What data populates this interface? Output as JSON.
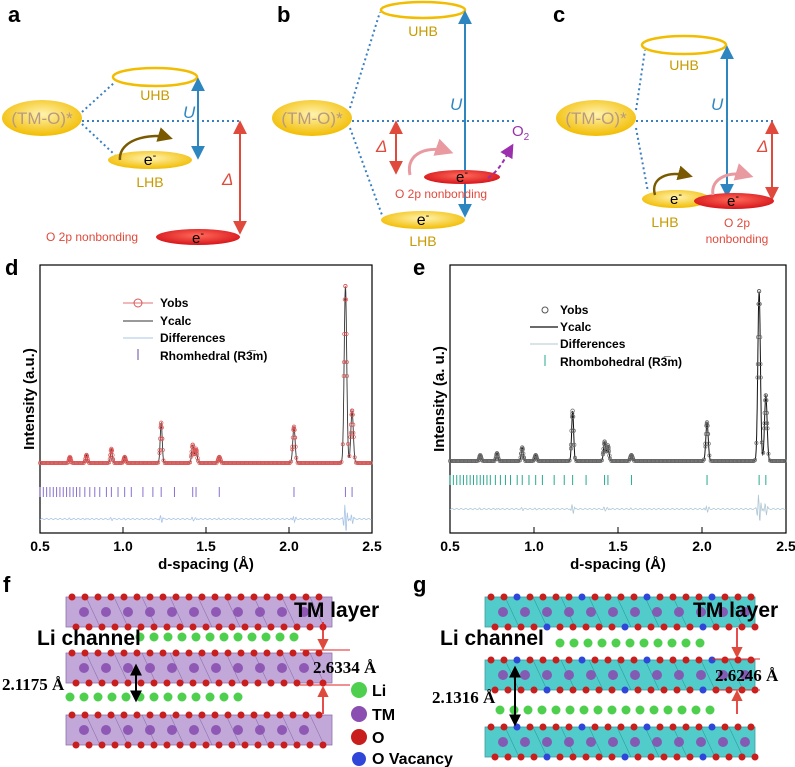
{
  "panels": {
    "a": {
      "letter": "a",
      "tm_o": "(TM-O)*",
      "uhb": "UHB",
      "lhb": "LHB",
      "electron": "e",
      "electron_sup": "-",
      "u": "U",
      "delta": "Δ",
      "nonbonding": "O 2p nonbonding",
      "nonbonding_e": "e",
      "nonbonding_e_sup": "-"
    },
    "b": {
      "letter": "b",
      "tm_o": "(TM-O)*",
      "uhb": "UHB",
      "lhb": "LHB",
      "u": "U",
      "delta": "Δ",
      "lhb_e": "e",
      "lhb_e_sup": "-",
      "nb_e": "e",
      "nb_e_sup": "-",
      "nonbonding": "O 2p nonbonding",
      "o2": "O",
      "o2_sub": "2"
    },
    "c": {
      "letter": "c",
      "tm_o": "(TM-O)*",
      "uhb": "UHB",
      "lhb": "LHB",
      "u": "U",
      "delta": "Δ",
      "e1": "e",
      "e1_sup": "-",
      "e2": "e",
      "e2_sup": "-",
      "nb_line1": "O 2p",
      "nb_line2": "nonbonding"
    },
    "f": {
      "letter": "f",
      "tm_layer": "TM layer",
      "li_channel": "Li channel",
      "d1": "2.6334 Å",
      "d2": "2.1175 Å"
    },
    "g": {
      "letter": "g",
      "tm_layer": "TM layer",
      "li_channel": "Li channel",
      "d1": "2.6246 Å",
      "d2": "2.1316 Å"
    },
    "legend": {
      "li": "Li",
      "tm": "TM",
      "o": "O",
      "vac": "O Vacancy"
    }
  },
  "colors": {
    "yellow": "#f5c400",
    "red_band": "#e0201c",
    "blue_arrow": "#2e86c1",
    "red_arrow": "#e04a3c",
    "dotted_line": "#3a7fc1",
    "li": "#4ed04e",
    "tm": "#8a4fb0",
    "o": "#c81e1e",
    "vac": "#3046d8",
    "layer_purple": "#b79ad3",
    "layer_teal": "#34c3c3"
  },
  "chart_data": [
    {
      "panel": "d",
      "type": "line",
      "xlabel": "d-spacing (Å)",
      "ylabel": "Intensity (a.u.)",
      "xlim": [
        0.5,
        2.5
      ],
      "xticks": [
        "0.5",
        "1.0",
        "1.5",
        "2.0",
        "2.5"
      ],
      "legend_position": "top-center",
      "legend": [
        "Yobs",
        "Ycalc",
        "Differences",
        "Rhomhedral (R3̅m)"
      ],
      "background": 0.08,
      "peaks": [
        {
          "x": 0.68,
          "y": 0.03
        },
        {
          "x": 0.78,
          "y": 0.04
        },
        {
          "x": 0.93,
          "y": 0.07
        },
        {
          "x": 1.01,
          "y": 0.03
        },
        {
          "x": 1.23,
          "y": 0.2
        },
        {
          "x": 1.42,
          "y": 0.09
        },
        {
          "x": 1.44,
          "y": 0.07
        },
        {
          "x": 1.58,
          "y": 0.03
        },
        {
          "x": 2.03,
          "y": 0.18
        },
        {
          "x": 2.34,
          "y": 0.88
        },
        {
          "x": 2.38,
          "y": 0.26
        }
      ],
      "reflection_ticks": [
        0.5,
        0.52,
        0.54,
        0.56,
        0.58,
        0.6,
        0.62,
        0.64,
        0.66,
        0.68,
        0.7,
        0.72,
        0.74,
        0.77,
        0.8,
        0.83,
        0.86,
        0.9,
        0.93,
        0.97,
        1.01,
        1.05,
        1.12,
        1.18,
        1.23,
        1.31,
        1.42,
        1.44,
        1.58,
        2.03,
        2.34,
        2.38
      ]
    },
    {
      "panel": "e",
      "type": "line",
      "xlabel": "d-spacing (Å)",
      "ylabel": "Intensity (a. u.)",
      "xlim": [
        0.5,
        2.5
      ],
      "xticks": [
        "0.5",
        "1.0",
        "1.5",
        "2.0",
        "2.5"
      ],
      "legend_position": "top-center",
      "legend": [
        "Yobs",
        "Ycalc",
        "Differences",
        "Rhombohedral (R3̅m)"
      ],
      "background": 0.05,
      "peaks": [
        {
          "x": 0.68,
          "y": 0.03
        },
        {
          "x": 0.78,
          "y": 0.04
        },
        {
          "x": 0.93,
          "y": 0.07
        },
        {
          "x": 1.01,
          "y": 0.03
        },
        {
          "x": 1.23,
          "y": 0.26
        },
        {
          "x": 1.42,
          "y": 0.1
        },
        {
          "x": 1.44,
          "y": 0.08
        },
        {
          "x": 1.58,
          "y": 0.03
        },
        {
          "x": 2.03,
          "y": 0.2
        },
        {
          "x": 2.34,
          "y": 0.88
        },
        {
          "x": 2.38,
          "y": 0.34
        }
      ],
      "reflection_ticks": [
        0.5,
        0.52,
        0.54,
        0.56,
        0.58,
        0.6,
        0.62,
        0.64,
        0.66,
        0.68,
        0.7,
        0.72,
        0.74,
        0.77,
        0.8,
        0.83,
        0.86,
        0.9,
        0.93,
        0.97,
        1.01,
        1.05,
        1.12,
        1.18,
        1.23,
        1.31,
        1.42,
        1.44,
        1.58,
        2.03,
        2.34,
        2.38
      ]
    }
  ]
}
